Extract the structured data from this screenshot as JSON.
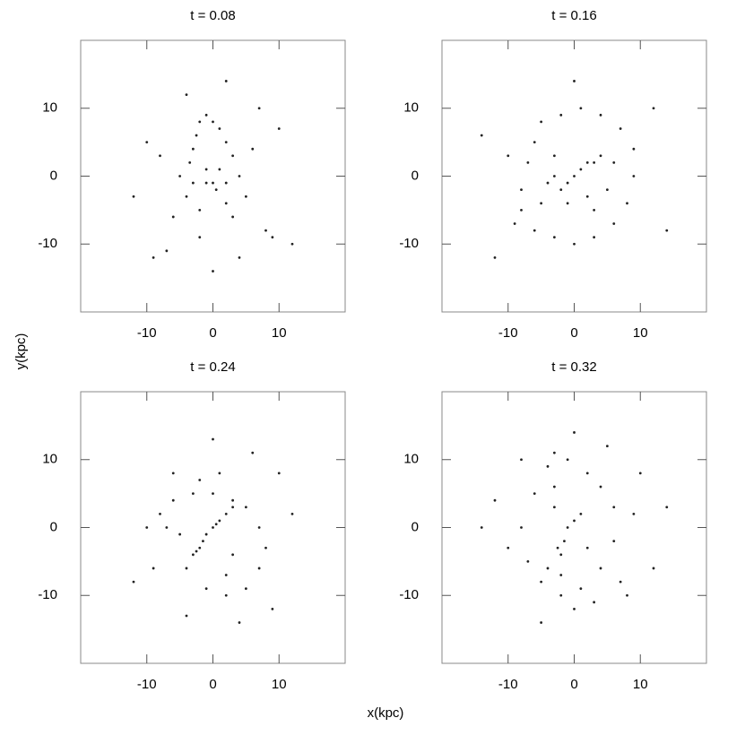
{
  "figure": {
    "xlabel": "x(kpc)",
    "ylabel": "y(kpc)"
  },
  "chart_data": [
    {
      "type": "scatter",
      "title": "t = 0.08",
      "color": "#222222",
      "xlim": [
        -20,
        20
      ],
      "ylim": [
        -20,
        20
      ],
      "xticks": [
        -10,
        0,
        10
      ],
      "yticks": [
        -10,
        0,
        10
      ],
      "x": [
        -3,
        -2.5,
        -3.5,
        -2,
        -1,
        0,
        1,
        2,
        3,
        4,
        -1,
        0.5,
        2,
        -2,
        -4,
        -5,
        3,
        5,
        1,
        -1,
        0,
        2,
        -3,
        -6,
        6,
        -8,
        8,
        -10,
        10,
        -12,
        12,
        0,
        -4,
        4,
        -7,
        7,
        2,
        -2,
        -9,
        9
      ],
      "y": [
        4,
        6,
        2,
        8,
        9,
        8,
        7,
        5,
        3,
        0,
        -1,
        -2,
        -4,
        -5,
        -3,
        0,
        -6,
        -3,
        1,
        1,
        -1,
        -1,
        -1,
        -6,
        4,
        3,
        -8,
        5,
        7,
        -3,
        -10,
        -14,
        12,
        -12,
        -11,
        10,
        14,
        -9,
        -12,
        -9
      ]
    },
    {
      "type": "scatter",
      "title": "t = 0.16",
      "color": "#222222",
      "xlim": [
        -20,
        20
      ],
      "ylim": [
        -20,
        20
      ],
      "xticks": [
        -10,
        0,
        10
      ],
      "yticks": [
        -10,
        0,
        10
      ],
      "x": [
        -3,
        -1,
        1,
        3,
        4,
        -2,
        0,
        2,
        -4,
        -6,
        -7,
        -8,
        -8,
        -6,
        -3,
        0,
        3,
        6,
        8,
        9,
        9,
        7,
        4,
        1,
        -2,
        -5,
        -9,
        -10,
        5,
        -12,
        12,
        0,
        -14,
        14,
        -1,
        2,
        -3,
        3,
        6,
        -5
      ],
      "y": [
        0,
        -1,
        1,
        2,
        3,
        -2,
        0,
        2,
        -1,
        5,
        2,
        -2,
        -5,
        -8,
        -9,
        -10,
        -9,
        -7,
        -4,
        0,
        4,
        7,
        9,
        10,
        9,
        8,
        -7,
        3,
        -2,
        -12,
        10,
        14,
        6,
        -8,
        -4,
        -3,
        3,
        -5,
        2,
        -4
      ]
    },
    {
      "type": "scatter",
      "title": "t = 0.24",
      "color": "#222222",
      "xlim": [
        -20,
        20
      ],
      "ylim": [
        -20,
        20
      ],
      "xticks": [
        -10,
        0,
        10
      ],
      "yticks": [
        -10,
        0,
        10
      ],
      "x": [
        -3,
        -2,
        -1,
        0,
        1,
        2,
        3,
        -2.5,
        -1.5,
        0.5,
        -5,
        -7,
        -8,
        -6,
        -3,
        0,
        3,
        5,
        7,
        8,
        7,
        5,
        2,
        -1,
        -10,
        10,
        0,
        -4,
        4,
        -12,
        12,
        -9,
        9,
        -6,
        6,
        -2,
        2,
        1,
        -4,
        3
      ],
      "y": [
        -4,
        -3,
        -1,
        0,
        1,
        2,
        3,
        -3.5,
        -2,
        0.5,
        -1,
        0,
        2,
        4,
        5,
        5,
        4,
        3,
        0,
        -3,
        -6,
        -9,
        -10,
        -9,
        0,
        8,
        13,
        -13,
        -14,
        -8,
        2,
        -6,
        -12,
        8,
        11,
        7,
        -7,
        8,
        -6,
        -4
      ]
    },
    {
      "type": "scatter",
      "title": "t = 0.32",
      "color": "#222222",
      "xlim": [
        -20,
        20
      ],
      "ylim": [
        -20,
        20
      ],
      "xticks": [
        -10,
        0,
        10
      ],
      "yticks": [
        -10,
        0,
        10
      ],
      "x": [
        -2,
        -1.5,
        -1,
        0,
        1,
        -2.5,
        -3,
        -3,
        -4,
        -3,
        -1,
        2,
        4,
        6,
        6,
        4,
        1,
        -2,
        -5,
        -7,
        -8,
        -6,
        -4,
        0,
        3,
        7,
        9,
        -10,
        10,
        -12,
        12,
        0,
        -5,
        5,
        -2,
        2,
        -8,
        8,
        -14,
        14
      ],
      "y": [
        -4,
        -2,
        0,
        1,
        2,
        -3,
        3,
        6,
        9,
        11,
        10,
        8,
        6,
        3,
        -2,
        -6,
        -9,
        -10,
        -8,
        -5,
        0,
        5,
        -6,
        -12,
        -11,
        -8,
        2,
        -3,
        8,
        4,
        -6,
        14,
        -14,
        12,
        -7,
        -3,
        10,
        -10,
        0,
        3
      ]
    }
  ]
}
